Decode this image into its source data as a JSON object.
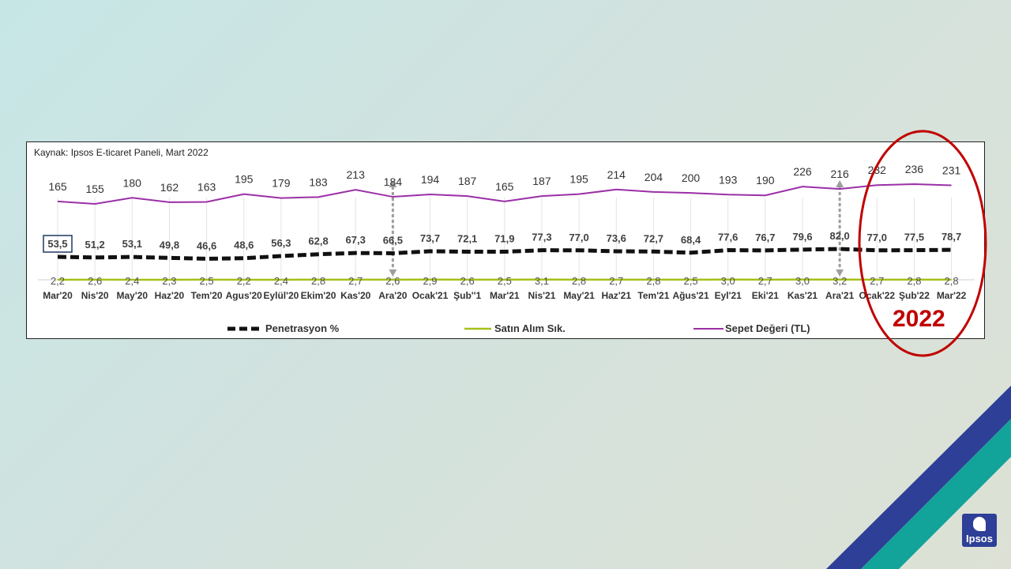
{
  "source": "Kaynak: Ipsos E-ticaret Paneli, Mart 2022",
  "highlight_label": "2022",
  "logo_text": "Ipsos",
  "colors": {
    "penetrasyon": "#111111",
    "satin_alim": "#a8bf18",
    "sepet": "#9b2fa7",
    "highlight": "#c00000",
    "arrow": "#9e9e9e",
    "brand_blue": "#2e3f97",
    "brand_teal": "#12a39a"
  },
  "chart_data": {
    "type": "line",
    "categories": [
      "Mar'20",
      "Nis'20",
      "May'20",
      "Haz'20",
      "Tem'20",
      "Agus'20",
      "Eylül'20",
      "Ekim'20",
      "Kas'20",
      "Ara'20",
      "Ocak'21",
      "Şub''1",
      "Mar'21",
      "Nis'21",
      "May'21",
      "Haz'21",
      "Tem'21",
      "Ağus'21",
      "Eyl'21",
      "Eki'21",
      "Kas'21",
      "Ara'21",
      "Ocak'22",
      "Şub'22",
      "Mar'22"
    ],
    "series": [
      {
        "name": "Sepet Değeri (TL)",
        "values": [
          165,
          155,
          180,
          162,
          163,
          195,
          179,
          183,
          213,
          184,
          194,
          187,
          165,
          187,
          195,
          214,
          204,
          200,
          193,
          190,
          226,
          216,
          232,
          236,
          231
        ],
        "labels": [
          "165",
          "155",
          "180",
          "162",
          "163",
          "195",
          "179",
          "183",
          "213",
          "184",
          "194",
          "187",
          "165",
          "187",
          "195",
          "214",
          "204",
          "200",
          "193",
          "190",
          "226",
          "216",
          "232",
          "236",
          "231"
        ]
      },
      {
        "name": "Penetrasyon %",
        "values": [
          53.5,
          51.2,
          53.1,
          49.8,
          46.6,
          48.6,
          56.3,
          62.8,
          67.3,
          66.5,
          73.7,
          72.1,
          71.9,
          77.3,
          77.0,
          73.6,
          72.7,
          68.4,
          77.6,
          76.7,
          79.6,
          82.0,
          77.0,
          77.5,
          78.7
        ],
        "labels": [
          "53,5",
          "51,2",
          "53,1",
          "49,8",
          "46,6",
          "48,6",
          "56,3",
          "62,8",
          "67,3",
          "66,5",
          "73,7",
          "72,1",
          "71,9",
          "77,3",
          "77,0",
          "73,6",
          "72,7",
          "68,4",
          "77,6",
          "76,7",
          "79,6",
          "82,0",
          "77,0",
          "77,5",
          "78,7"
        ]
      },
      {
        "name": "Satın Alım Sık.",
        "values": [
          2.2,
          2.6,
          2.4,
          2.3,
          2.5,
          2.2,
          2.4,
          2.8,
          2.7,
          2.6,
          2.9,
          2.6,
          2.5,
          3.1,
          2.8,
          2.7,
          2.8,
          2.5,
          3.0,
          2.7,
          3.0,
          3.2,
          2.7,
          2.8,
          2.8
        ],
        "labels": [
          "2,2",
          "2,6",
          "2,4",
          "2,3",
          "2,5",
          "2,2",
          "2,4",
          "2,8",
          "2,7",
          "2,6",
          "2,9",
          "2,6",
          "2,5",
          "3,1",
          "2,8",
          "2,7",
          "2,8",
          "2,5",
          "3,0",
          "2,7",
          "3,0",
          "3,2",
          "2,7",
          "2,8",
          "2,8"
        ]
      }
    ],
    "legend": [
      "Penetrasyon %",
      "Satın Alım Sık.",
      "Sepet Değeri (TL)"
    ],
    "legend_position": "bottom",
    "boxed_label_index": 0,
    "arrow_indices": [
      9,
      21
    ],
    "highlight_range": [
      "Ocak'22",
      "Mar'22"
    ],
    "grid": true
  }
}
